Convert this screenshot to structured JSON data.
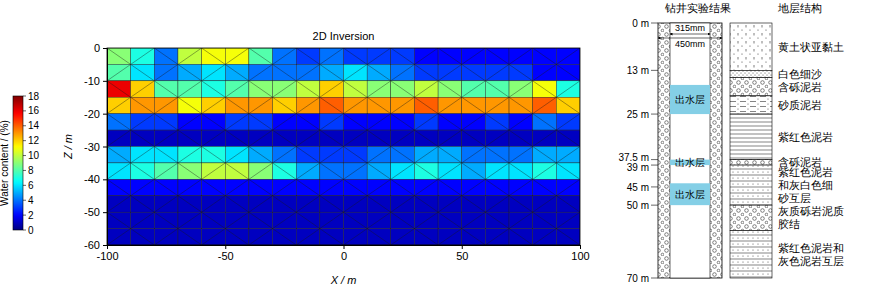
{
  "chart_data": {
    "type": "heatmap",
    "title": "2D Inversion",
    "xlabel": "X / m",
    "ylabel": "Z / m",
    "xlim": [
      -100,
      100
    ],
    "ylim": [
      -60,
      0
    ],
    "xticks": [
      -100,
      -50,
      0,
      50,
      100
    ],
    "yticks": [
      -60,
      -50,
      -40,
      -30,
      -20,
      -10,
      0
    ],
    "cell_x": [
      -100,
      -90,
      -80,
      -70,
      -60,
      -50,
      -40,
      -30,
      -20,
      -10,
      0,
      10,
      20,
      30,
      40,
      50,
      60,
      70,
      80,
      90,
      100
    ],
    "cell_z": [
      0,
      -5,
      -10,
      -15,
      -20,
      -25,
      -30,
      -35,
      -40,
      -45,
      -50,
      -55,
      -60
    ],
    "cells": [
      [
        9,
        7,
        4,
        10,
        11,
        11,
        8,
        4,
        3,
        4,
        3,
        3,
        3,
        2,
        2,
        2,
        2,
        2,
        2,
        2
      ],
      [
        8,
        6,
        4,
        5,
        6,
        5,
        4,
        4,
        4,
        5,
        6,
        5,
        4,
        3,
        3,
        3,
        3,
        3,
        2,
        2
      ],
      [
        16,
        12,
        8,
        8,
        7,
        8,
        9,
        9,
        10,
        12,
        10,
        9,
        9,
        10,
        9,
        8,
        8,
        9,
        11,
        7
      ],
      [
        12,
        13,
        13,
        11,
        12,
        13,
        13,
        12,
        13,
        14,
        13,
        13,
        13,
        14,
        13,
        13,
        13,
        13,
        14,
        12
      ],
      [
        4,
        3,
        3,
        2,
        2,
        3,
        3,
        2,
        2,
        3,
        2,
        2,
        2,
        3,
        2,
        2,
        3,
        2,
        4,
        3
      ],
      [
        1,
        1,
        1,
        1,
        1,
        1,
        1,
        1,
        1,
        1,
        1,
        1,
        1,
        1,
        1,
        1,
        1,
        1,
        1,
        1
      ],
      [
        5,
        6,
        6,
        7,
        7,
        6,
        5,
        4,
        3,
        3,
        3,
        4,
        4,
        5,
        5,
        4,
        4,
        4,
        5,
        5
      ],
      [
        6,
        7,
        8,
        9,
        10,
        10,
        9,
        7,
        5,
        4,
        4,
        5,
        6,
        7,
        6,
        5,
        6,
        6,
        7,
        6
      ],
      [
        2,
        2,
        2,
        2,
        2,
        2,
        2,
        2,
        2,
        2,
        2,
        2,
        2,
        2,
        2,
        2,
        2,
        2,
        2,
        2
      ],
      [
        1,
        1,
        1,
        1,
        1,
        1,
        1,
        1,
        1,
        1,
        1,
        1,
        1,
        1,
        1,
        1,
        1,
        1,
        1,
        1
      ],
      [
        1,
        1,
        1,
        1,
        1,
        1,
        1,
        1,
        1,
        1,
        1,
        1,
        1,
        1,
        1,
        1,
        1,
        1,
        1,
        1
      ],
      [
        1,
        1,
        1,
        1,
        1,
        1,
        1,
        1,
        1,
        1,
        1,
        1,
        1,
        1,
        1,
        1,
        1,
        1,
        1,
        1
      ]
    ],
    "colorbar": {
      "label": "Water content / (%)",
      "range": [
        0,
        18
      ],
      "ticks": [
        0,
        2,
        4,
        6,
        8,
        10,
        12,
        14,
        16,
        18
      ]
    }
  },
  "borehole": {
    "header_left": "钻井实验结果",
    "header_right": "地层结构",
    "depth_range": [
      0,
      70
    ],
    "depth_ticks": [
      {
        "value": 0,
        "label": "0 m"
      },
      {
        "value": 13,
        "label": "13 m"
      },
      {
        "value": 25,
        "label": "25 m"
      },
      {
        "value": 37.5,
        "label": "37.5 m"
      },
      {
        "value": 39,
        "label": "39 m"
      },
      {
        "value": 45,
        "label": "45 m"
      },
      {
        "value": 50,
        "label": "50 m"
      },
      {
        "value": 70,
        "label": "70 m"
      }
    ],
    "diameters": [
      "315mm",
      "450mm"
    ],
    "water_layers": [
      {
        "label": "出水层",
        "top": 17,
        "bottom": 25
      },
      {
        "label": "出水层",
        "top": 37.5,
        "bottom": 39
      },
      {
        "label": "出水层",
        "top": 44,
        "bottom": 50
      }
    ],
    "strata": [
      {
        "top": 0,
        "bottom": 13,
        "label_lines": [
          "黄土状亚黏土"
        ]
      },
      {
        "top": 13,
        "bottom": 15,
        "label_lines": [
          "白色细沙"
        ]
      },
      {
        "top": 15,
        "bottom": 20,
        "label_lines": [
          "含砾泥岩"
        ]
      },
      {
        "top": 20,
        "bottom": 25,
        "label_lines": [
          "砂质泥岩"
        ]
      },
      {
        "top": 25,
        "bottom": 37.5,
        "label_lines": [
          "紫红色泥岩"
        ]
      },
      {
        "top": 37.5,
        "bottom": 39,
        "label_lines": [
          "含砾泥岩"
        ]
      },
      {
        "top": 39,
        "bottom": 50,
        "label_lines": [
          "紫红色泥岩",
          "和灰白色细",
          "砂互层"
        ]
      },
      {
        "top": 50,
        "bottom": 57,
        "label_lines": [
          "灰质砾岩泥质",
          "胶结"
        ]
      },
      {
        "top": 57,
        "bottom": 70,
        "label_lines": [
          "紫红色泥岩和",
          "灰色泥岩互层"
        ]
      }
    ]
  }
}
